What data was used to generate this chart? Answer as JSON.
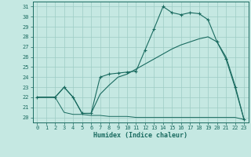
{
  "xlabel": "Humidex (Indice chaleur)",
  "xlim": [
    -0.5,
    23.5
  ],
  "ylim": [
    19.5,
    31.5
  ],
  "xticks": [
    0,
    1,
    2,
    3,
    4,
    5,
    6,
    7,
    8,
    9,
    10,
    11,
    12,
    13,
    14,
    15,
    16,
    17,
    18,
    19,
    20,
    21,
    22,
    23
  ],
  "yticks": [
    20,
    21,
    22,
    23,
    24,
    25,
    26,
    27,
    28,
    29,
    30,
    31
  ],
  "bg_color": "#c5e8e2",
  "grid_color": "#9dccc5",
  "line_color": "#1a6b60",
  "line1_x": [
    0,
    1,
    2,
    3,
    4,
    5,
    6,
    7,
    8,
    9,
    10,
    11,
    12,
    13,
    14,
    15,
    16,
    17,
    18,
    19,
    20,
    21,
    22,
    23
  ],
  "line1_y": [
    22.0,
    22.0,
    22.0,
    20.5,
    20.3,
    20.3,
    20.2,
    20.2,
    20.1,
    20.1,
    20.1,
    20.0,
    20.0,
    20.0,
    20.0,
    20.0,
    20.0,
    20.0,
    20.0,
    20.0,
    20.0,
    20.0,
    20.0,
    19.8
  ],
  "line2_x": [
    0,
    2,
    3,
    4,
    5,
    6,
    7,
    8,
    9,
    10,
    11,
    12,
    13,
    14,
    15,
    16,
    17,
    18,
    19,
    20,
    21,
    22,
    23
  ],
  "line2_y": [
    22.0,
    22.0,
    23.0,
    22.0,
    20.4,
    20.4,
    24.0,
    24.3,
    24.4,
    24.5,
    24.6,
    26.7,
    28.8,
    31.0,
    30.4,
    30.2,
    30.4,
    30.3,
    29.7,
    27.5,
    25.8,
    23.0,
    19.8
  ],
  "line3_x": [
    0,
    2,
    3,
    4,
    5,
    6,
    7,
    8,
    9,
    10,
    11,
    12,
    13,
    14,
    15,
    16,
    17,
    18,
    19,
    20,
    21,
    22,
    23
  ],
  "line3_y": [
    22.0,
    22.0,
    23.0,
    22.0,
    20.4,
    20.4,
    22.3,
    23.2,
    24.0,
    24.3,
    24.8,
    25.3,
    25.8,
    26.3,
    26.8,
    27.2,
    27.5,
    27.8,
    28.0,
    27.5,
    26.0,
    23.2,
    19.8
  ]
}
